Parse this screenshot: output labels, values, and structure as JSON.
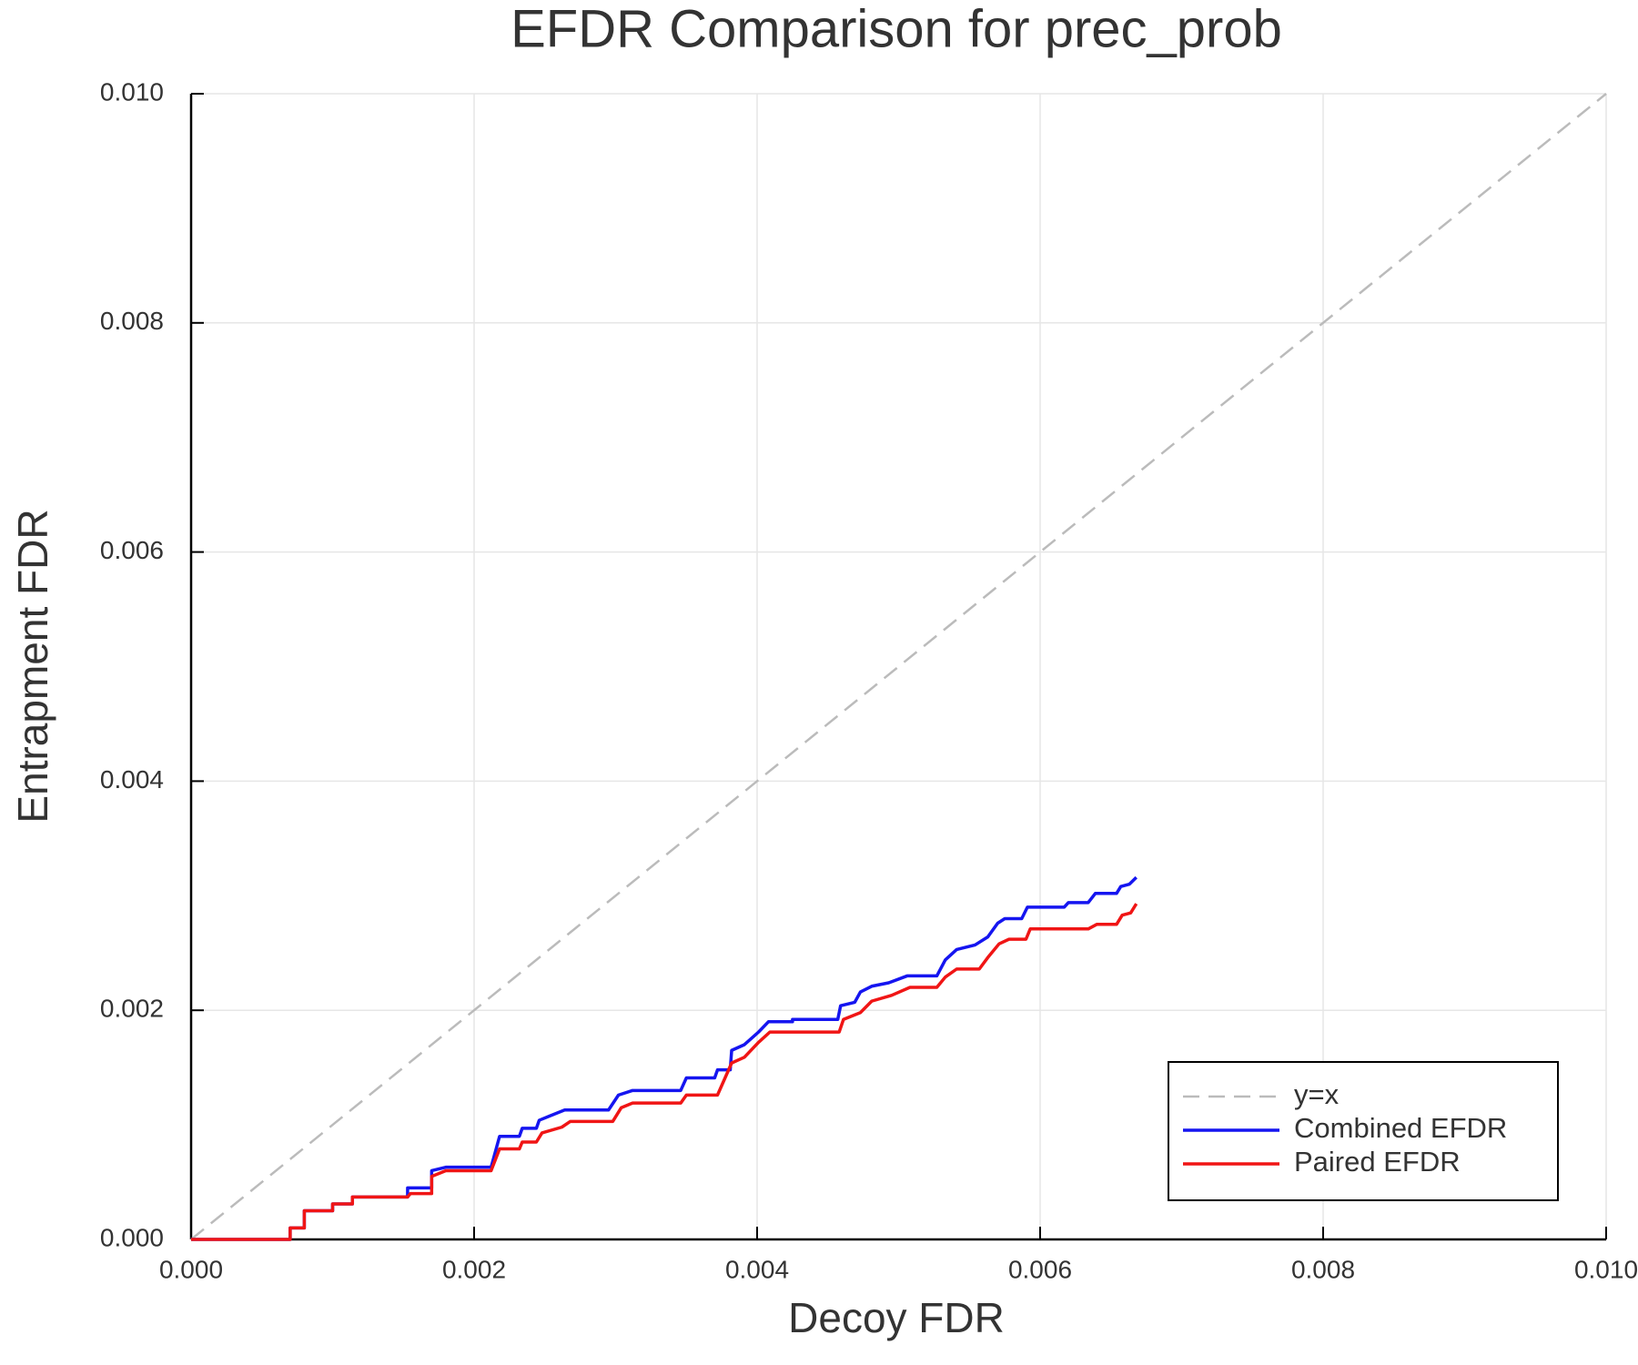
{
  "chart_data": {
    "type": "line",
    "title": "EFDR Comparison for prec_prob",
    "xlabel": "Decoy FDR",
    "ylabel": "Entrapment FDR",
    "xlim": [
      0,
      0.01
    ],
    "ylim": [
      0,
      0.01
    ],
    "xticks": [
      {
        "value": 0,
        "label": "0.000"
      },
      0.002,
      0.004,
      0.006,
      0.008,
      {
        "value": 0.01,
        "label": "0.010"
      }
    ],
    "yticks": [
      {
        "value": 0,
        "label": "0.000"
      },
      0.002,
      0.004,
      0.006,
      0.008,
      {
        "value": 0.01,
        "label": "0.010"
      }
    ],
    "grid": true,
    "legend": "lower right",
    "series": [
      {
        "name": "y=x",
        "color": "#bbbbbb",
        "dashed": true,
        "x": [
          0,
          0.01
        ],
        "values": [
          0,
          0.01
        ]
      },
      {
        "name": "Combined EFDR",
        "color": "#1515f0",
        "dashed": false,
        "x": [
          0,
          0.0007,
          0.0007,
          0.0008,
          0.0008,
          0.001,
          0.001,
          0.00114,
          0.00114,
          0.00153,
          0.00153,
          0.0017,
          0.0017,
          0.0018,
          0.00212,
          0.00218,
          0.00232,
          0.00234,
          0.00244,
          0.00246,
          0.00254,
          0.00264,
          0.00295,
          0.00302,
          0.00312,
          0.00346,
          0.0035,
          0.0037,
          0.00372,
          0.00381,
          0.00382,
          0.00391,
          0.00401,
          0.00408,
          0.00425,
          0.00425,
          0.00457,
          0.00459,
          0.00469,
          0.00473,
          0.00481,
          0.00493,
          0.00506,
          0.00527,
          0.00533,
          0.00541,
          0.00554,
          0.00563,
          0.0057,
          0.00575,
          0.00587,
          0.00591,
          0.00617,
          0.0062,
          0.00634,
          0.00639,
          0.00654,
          0.00657,
          0.00663,
          0.00668
        ],
        "values": [
          0,
          0,
          0.0001,
          0.0001,
          0.00025,
          0.00025,
          0.00031,
          0.00031,
          0.00037,
          0.00037,
          0.00045,
          0.00045,
          0.0006,
          0.00063,
          0.00063,
          0.0009,
          0.0009,
          0.00097,
          0.00097,
          0.00104,
          0.00108,
          0.00113,
          0.00113,
          0.00126,
          0.0013,
          0.0013,
          0.00141,
          0.00141,
          0.00148,
          0.00148,
          0.00165,
          0.0017,
          0.00181,
          0.0019,
          0.0019,
          0.00192,
          0.00192,
          0.00204,
          0.00207,
          0.00216,
          0.00221,
          0.00224,
          0.0023,
          0.0023,
          0.00244,
          0.00253,
          0.00257,
          0.00264,
          0.00276,
          0.0028,
          0.0028,
          0.0029,
          0.0029,
          0.00294,
          0.00294,
          0.00302,
          0.00302,
          0.00308,
          0.0031,
          0.00316
        ]
      },
      {
        "name": "Paired EFDR",
        "color": "#f01515",
        "dashed": false,
        "x": [
          0,
          0.0007,
          0.0007,
          0.0008,
          0.0008,
          0.001,
          0.001,
          0.00114,
          0.00114,
          0.00153,
          0.00155,
          0.0017,
          0.0017,
          0.0018,
          0.00212,
          0.00218,
          0.00232,
          0.00234,
          0.00244,
          0.00248,
          0.00262,
          0.00268,
          0.00298,
          0.00304,
          0.00312,
          0.00346,
          0.0035,
          0.00372,
          0.00382,
          0.00391,
          0.00401,
          0.00409,
          0.00458,
          0.00461,
          0.00473,
          0.00481,
          0.00495,
          0.00508,
          0.00527,
          0.00533,
          0.00541,
          0.00557,
          0.00563,
          0.00571,
          0.00578,
          0.0059,
          0.00593,
          0.00634,
          0.0064,
          0.00654,
          0.00658,
          0.00664,
          0.00668
        ],
        "values": [
          0,
          0,
          0.0001,
          0.0001,
          0.00025,
          0.00025,
          0.00031,
          0.00031,
          0.00037,
          0.00037,
          0.0004,
          0.0004,
          0.00055,
          0.0006,
          0.0006,
          0.00079,
          0.00079,
          0.00085,
          0.00085,
          0.00093,
          0.00098,
          0.00103,
          0.00103,
          0.00115,
          0.00119,
          0.00119,
          0.00126,
          0.00126,
          0.00154,
          0.00159,
          0.00172,
          0.00181,
          0.00181,
          0.00192,
          0.00198,
          0.00208,
          0.00213,
          0.0022,
          0.0022,
          0.00229,
          0.00236,
          0.00236,
          0.00246,
          0.00258,
          0.00262,
          0.00262,
          0.00271,
          0.00271,
          0.00275,
          0.00275,
          0.00283,
          0.00285,
          0.00293
        ]
      }
    ]
  }
}
